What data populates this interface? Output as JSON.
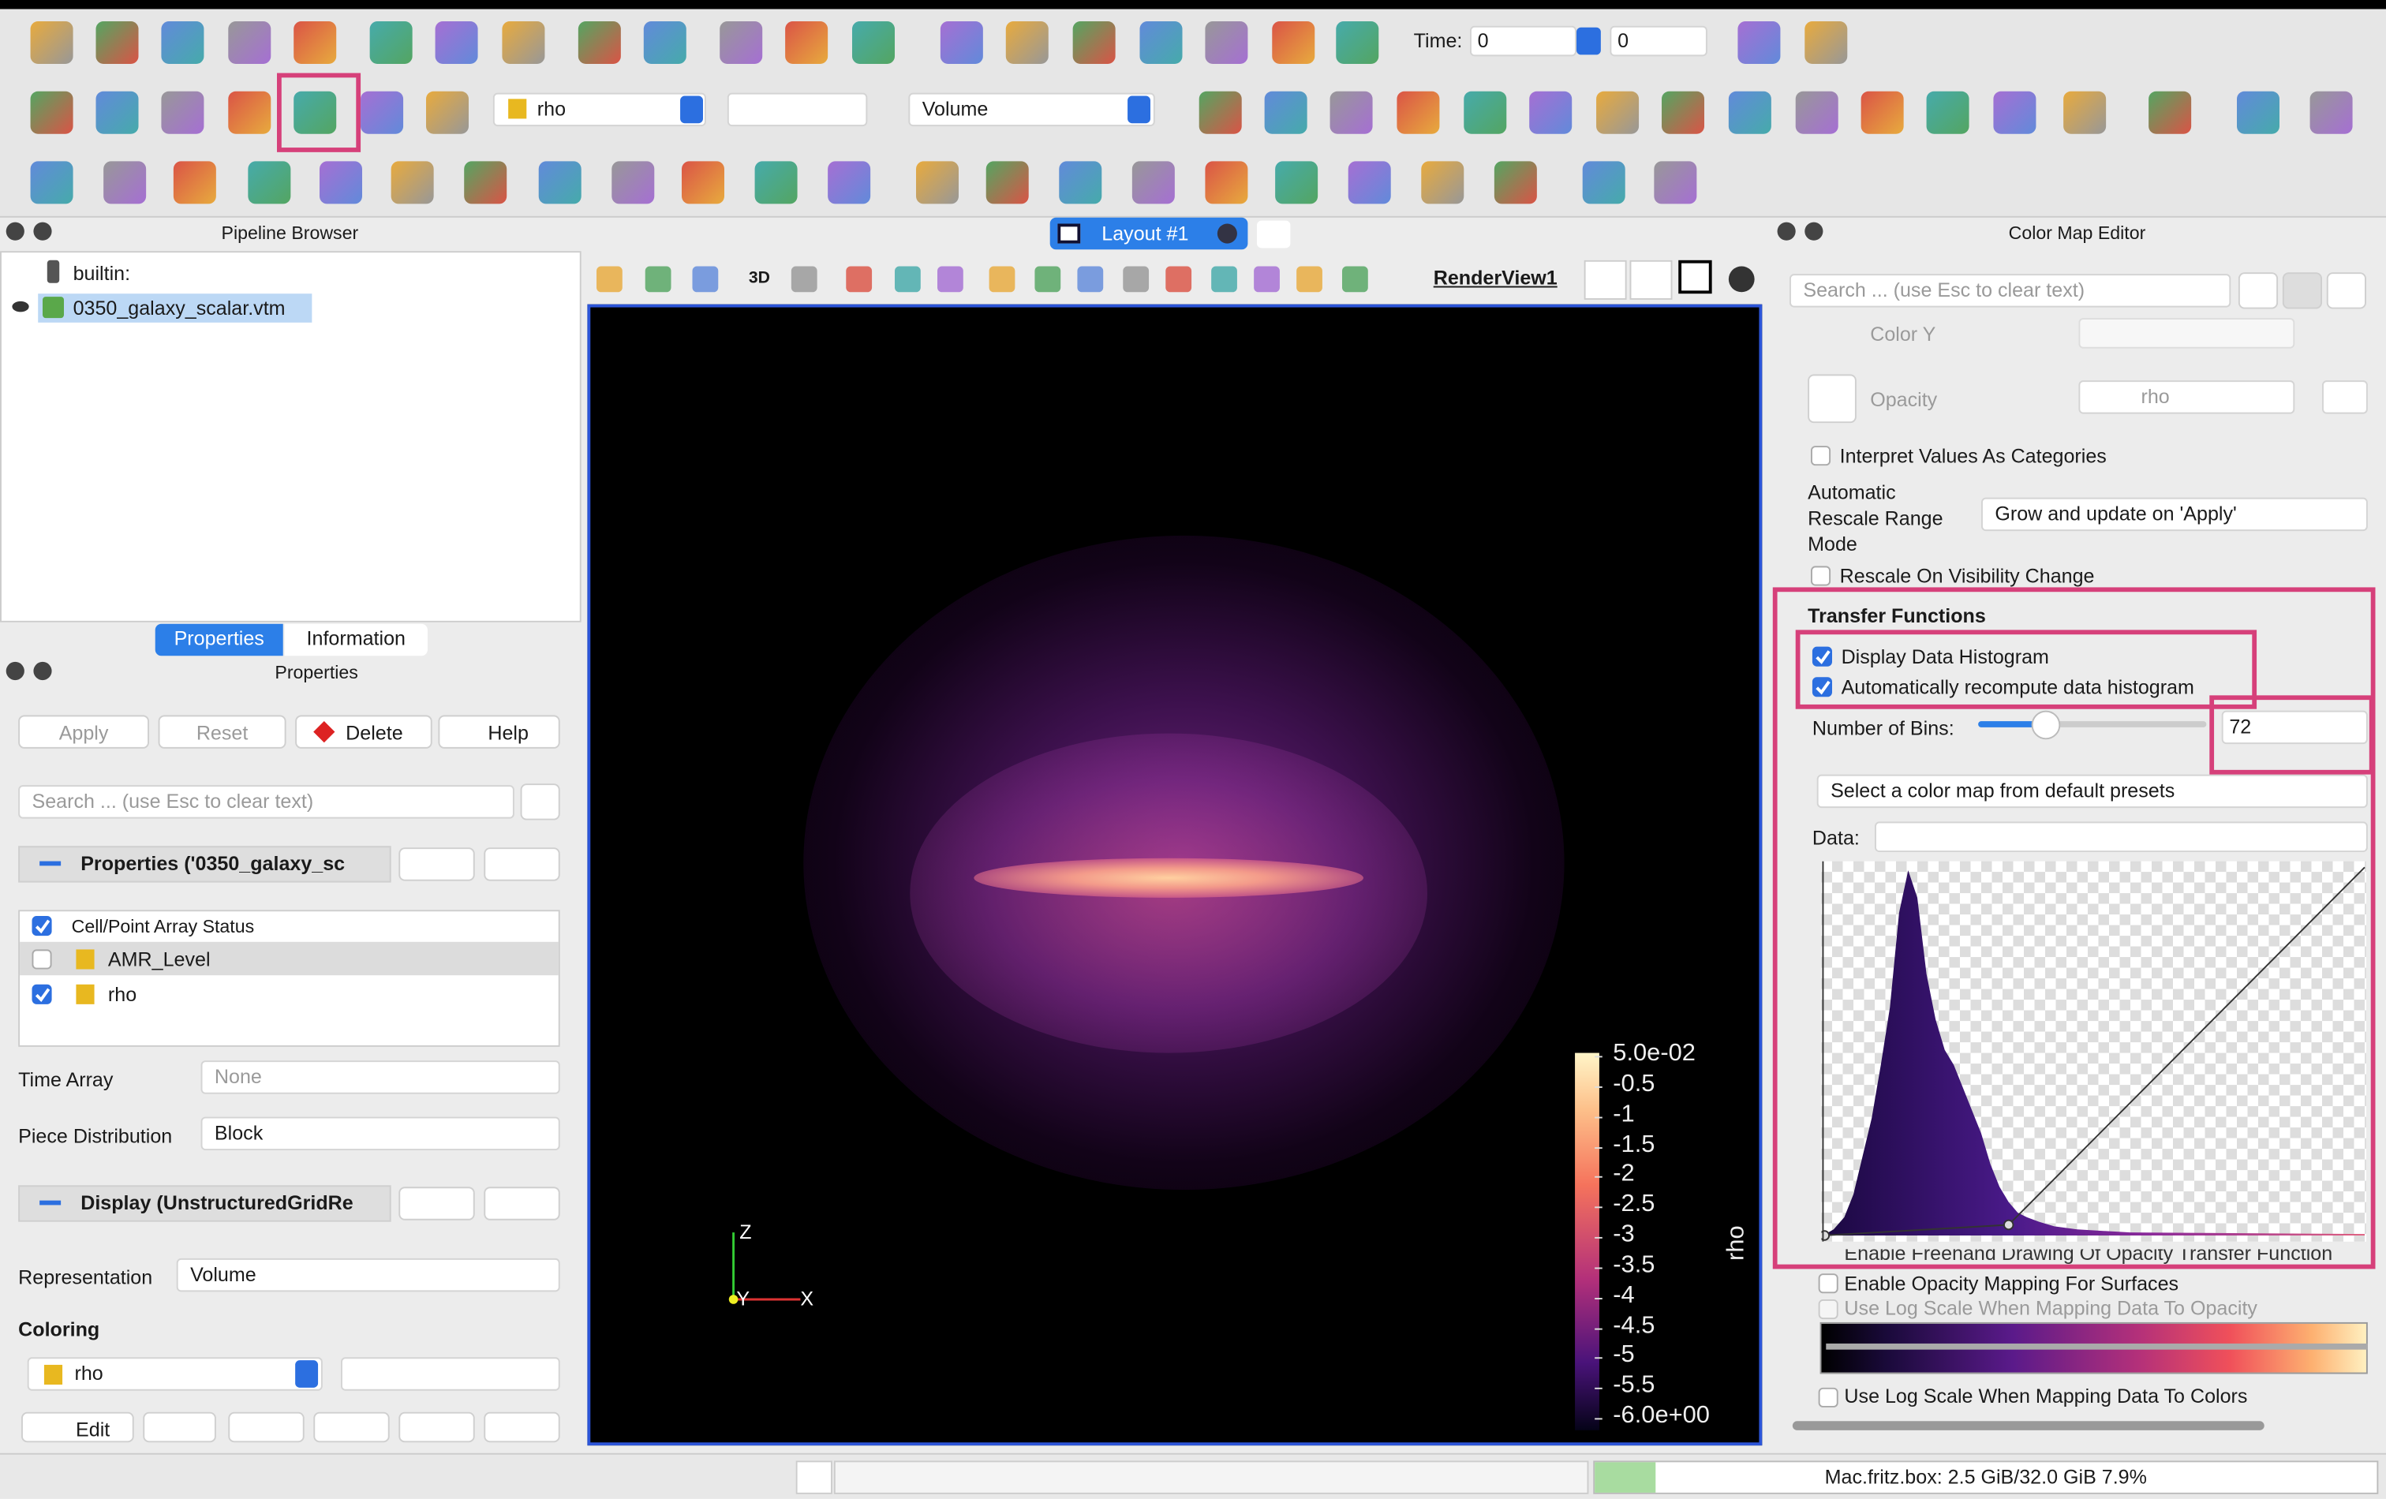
{
  "toolbar": {
    "time_label": "Time:",
    "time_value": "0",
    "time_index": "0",
    "array": "rho",
    "representation": "Volume"
  },
  "pipeline_browser": {
    "title": "Pipeline Browser",
    "items": [
      "builtin:",
      "0350_galaxy_scalar.vtm"
    ]
  },
  "properties_panel": {
    "tabs": [
      "Properties",
      "Information"
    ],
    "title": "Properties",
    "buttons": [
      "Apply",
      "Reset",
      "Delete",
      "Help"
    ],
    "search_placeholder": "Search ... (use Esc to clear text)",
    "section_properties": "Properties ('0350_galaxy_sc",
    "array_status": {
      "header": "Cell/Point Array Status",
      "arrays": [
        "AMR_Level",
        "rho"
      ]
    },
    "time_array": {
      "label": "Time Array",
      "value": "None"
    },
    "piece_distribution": {
      "label": "Piece Distribution",
      "value": "Block"
    },
    "section_display": "Display (UnstructuredGridRe",
    "representation": {
      "label": "Representation",
      "value": "Volume"
    },
    "coloring": {
      "label": "Coloring",
      "array": "rho",
      "edit": "Edit"
    }
  },
  "layout": {
    "tab": "Layout #1",
    "view_3d": "3D",
    "view": "RenderView1"
  },
  "render": {
    "colorbar_title": "rho",
    "colorbar_labels": [
      "5.0e-02",
      "-0.5",
      "-1",
      "-1.5",
      "-2",
      "-2.5",
      "-3",
      "-3.5",
      "-4",
      "-4.5",
      "-5",
      "-5.5",
      "-6.0e+00"
    ],
    "axes": [
      "Z",
      "Y",
      "X"
    ]
  },
  "color_map_editor": {
    "title": "Color Map Editor",
    "search_placeholder": "Search ... (use Esc to clear text)",
    "color_y": "Color Y",
    "opacity": {
      "label": "Opacity",
      "array": "rho"
    },
    "interpret_categories": "Interpret Values As Categories",
    "rescale_mode": {
      "label": "Automatic Rescale Range Mode",
      "value": "Grow and update on 'Apply'"
    },
    "rescale_visibility": "Rescale On Visibility Change",
    "transfer_functions": "Transfer Functions",
    "display_histogram": "Display Data Histogram",
    "auto_recompute": "Automatically recompute data histogram",
    "bins": {
      "label": "Number of Bins:",
      "value": "72"
    },
    "preset": "Select a color map from default presets",
    "data_label": "Data:",
    "freehand": "Enable Freehand Drawing Of Opacity Transfer Function",
    "opacity_surfaces": "Enable Opacity Mapping For Surfaces",
    "log_opacity": "Use Log Scale When Mapping Data To Opacity",
    "log_colors": "Use Log Scale When Mapping Data To Colors"
  },
  "status_bar": {
    "memory": "Mac.fritz.box: 2.5 GiB/32.0 GiB 7.9%"
  }
}
